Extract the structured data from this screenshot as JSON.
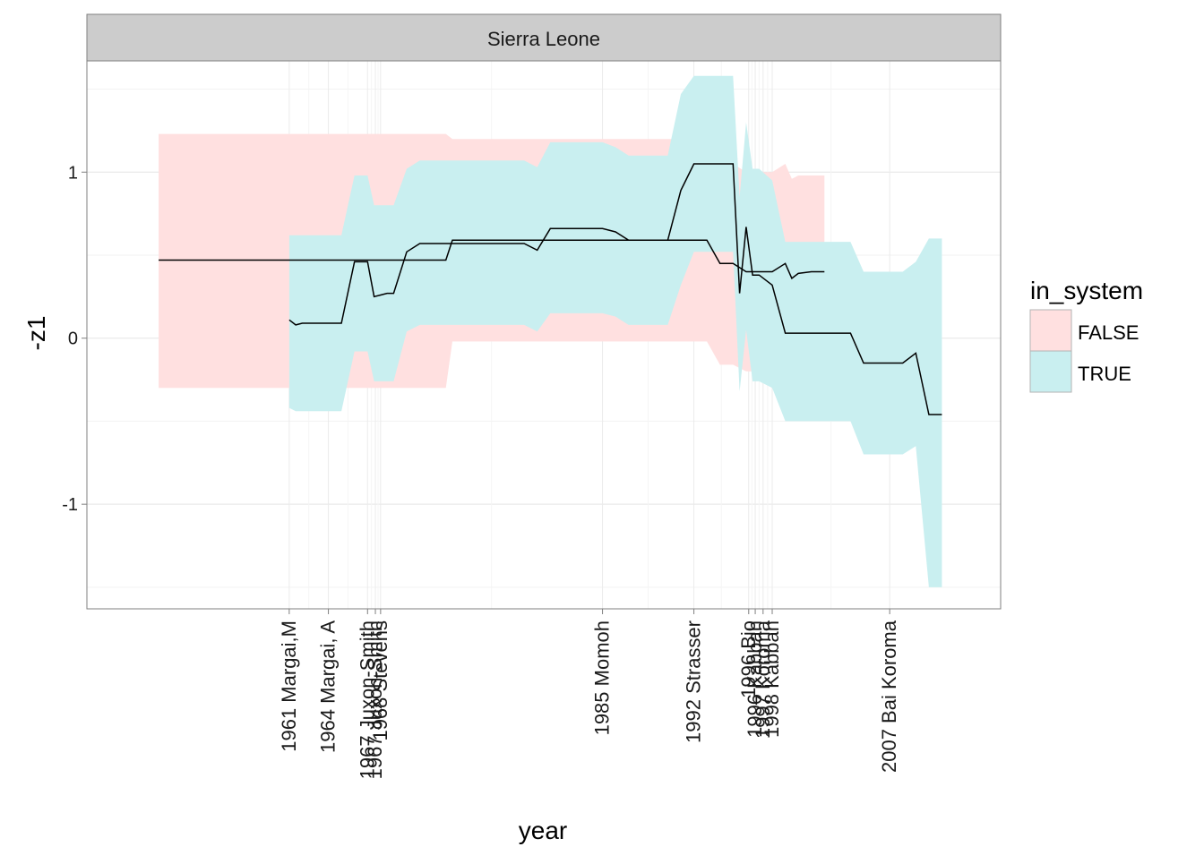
{
  "chart_data": {
    "type": "area",
    "facet": "Sierra Leone",
    "xlabel": "year",
    "ylabel": "-z1",
    "xlim": [
      1945.5,
      2015.5
    ],
    "ylim": [
      -1.63,
      1.67
    ],
    "y_ticks": [
      -1,
      0,
      1
    ],
    "grid": true,
    "legend": {
      "title": "in_system",
      "position": "right",
      "entries": [
        {
          "label": "FALSE",
          "color": "#ffe0e0"
        },
        {
          "label": "TRUE",
          "color": "#c9eff0"
        }
      ]
    },
    "x_tick_labels": [
      {
        "x": 1961,
        "label": "1961 Margai,M"
      },
      {
        "x": 1964,
        "label": "1964 Margai, A"
      },
      {
        "x": 1967,
        "label": "1967 Juxon-Smith"
      },
      {
        "x": 1967.6,
        "label": "1967 Juxon-Smith"
      },
      {
        "x": 1968,
        "label": "1968 Stevens"
      },
      {
        "x": 1985,
        "label": "1985 Momoh"
      },
      {
        "x": 1992,
        "label": "1992 Strasser"
      },
      {
        "x": 1996.2,
        "label": "1996 Bio"
      },
      {
        "x": 1996.7,
        "label": "1996 Kabbah"
      },
      {
        "x": 1997.3,
        "label": "1997 Koroma"
      },
      {
        "x": 1998,
        "label": "1998 Kabbah"
      },
      {
        "x": 2007,
        "label": "2007 Bai Koroma"
      }
    ],
    "series": [
      {
        "name": "FALSE",
        "color": "#ffe0e0",
        "line_color": "#000000",
        "x": [
          1951,
          1972,
          1973,
          1973.5,
          1976,
          1978,
          1984,
          1993,
          1994,
          1995,
          1996,
          1997,
          1998,
          1999,
          1999.5,
          2000,
          2001,
          2002
        ],
        "y": [
          0.47,
          0.47,
          0.47,
          0.59,
          0.59,
          0.59,
          0.59,
          0.59,
          0.45,
          0.45,
          0.4,
          0.4,
          0.4,
          0.45,
          0.36,
          0.39,
          0.4,
          0.4
        ],
        "lower": [
          -0.3,
          -0.3,
          -0.3,
          -0.02,
          -0.02,
          -0.02,
          -0.02,
          -0.02,
          -0.16,
          -0.16,
          -0.2,
          -0.2,
          -0.2,
          -0.16,
          -0.23,
          -0.18,
          -0.18,
          -0.18
        ],
        "upper": [
          1.23,
          1.23,
          1.23,
          1.2,
          1.2,
          1.2,
          1.2,
          1.2,
          1.05,
          1.05,
          1.0,
          1.0,
          1.0,
          1.05,
          0.96,
          0.98,
          0.98,
          0.98
        ]
      },
      {
        "name": "TRUE",
        "color": "#c9eff0",
        "line_color": "#000000",
        "x": [
          1961,
          1961.5,
          1962,
          1965,
          1966,
          1967,
          1967.5,
          1968,
          1968.5,
          1969,
          1970,
          1971,
          1979,
          1980,
          1981,
          1985,
          1986,
          1987,
          1989,
          1990,
          1991,
          1992,
          1994,
          1995,
          1995.5,
          1996,
          1996.5,
          1997,
          1998,
          1999,
          2000,
          2004,
          2005,
          2008,
          2009,
          2010,
          2011
        ],
        "y": [
          0.11,
          0.08,
          0.09,
          0.09,
          0.46,
          0.46,
          0.25,
          0.26,
          0.27,
          0.27,
          0.52,
          0.57,
          0.57,
          0.53,
          0.66,
          0.66,
          0.64,
          0.59,
          0.59,
          0.59,
          0.89,
          1.05,
          1.05,
          1.05,
          0.27,
          0.67,
          0.38,
          0.38,
          0.32,
          0.03,
          0.03,
          0.03,
          -0.15,
          -0.15,
          -0.09,
          -0.46,
          -0.46
        ],
        "lower": [
          -0.42,
          -0.44,
          -0.44,
          -0.44,
          -0.08,
          -0.08,
          -0.26,
          -0.26,
          -0.26,
          -0.26,
          0.04,
          0.08,
          0.08,
          0.04,
          0.15,
          0.15,
          0.13,
          0.08,
          0.08,
          0.08,
          0.32,
          0.52,
          0.52,
          0.52,
          -0.32,
          0.05,
          -0.26,
          -0.26,
          -0.3,
          -0.5,
          -0.5,
          -0.5,
          -0.7,
          -0.7,
          -0.65,
          -1.5,
          -1.5
        ],
        "upper": [
          0.62,
          0.62,
          0.62,
          0.62,
          0.98,
          0.98,
          0.8,
          0.8,
          0.8,
          0.8,
          1.02,
          1.07,
          1.07,
          1.03,
          1.18,
          1.18,
          1.15,
          1.1,
          1.1,
          1.1,
          1.47,
          1.58,
          1.58,
          1.58,
          0.85,
          1.3,
          1.02,
          1.02,
          0.95,
          0.58,
          0.58,
          0.58,
          0.4,
          0.4,
          0.46,
          0.6,
          0.6
        ]
      }
    ]
  }
}
